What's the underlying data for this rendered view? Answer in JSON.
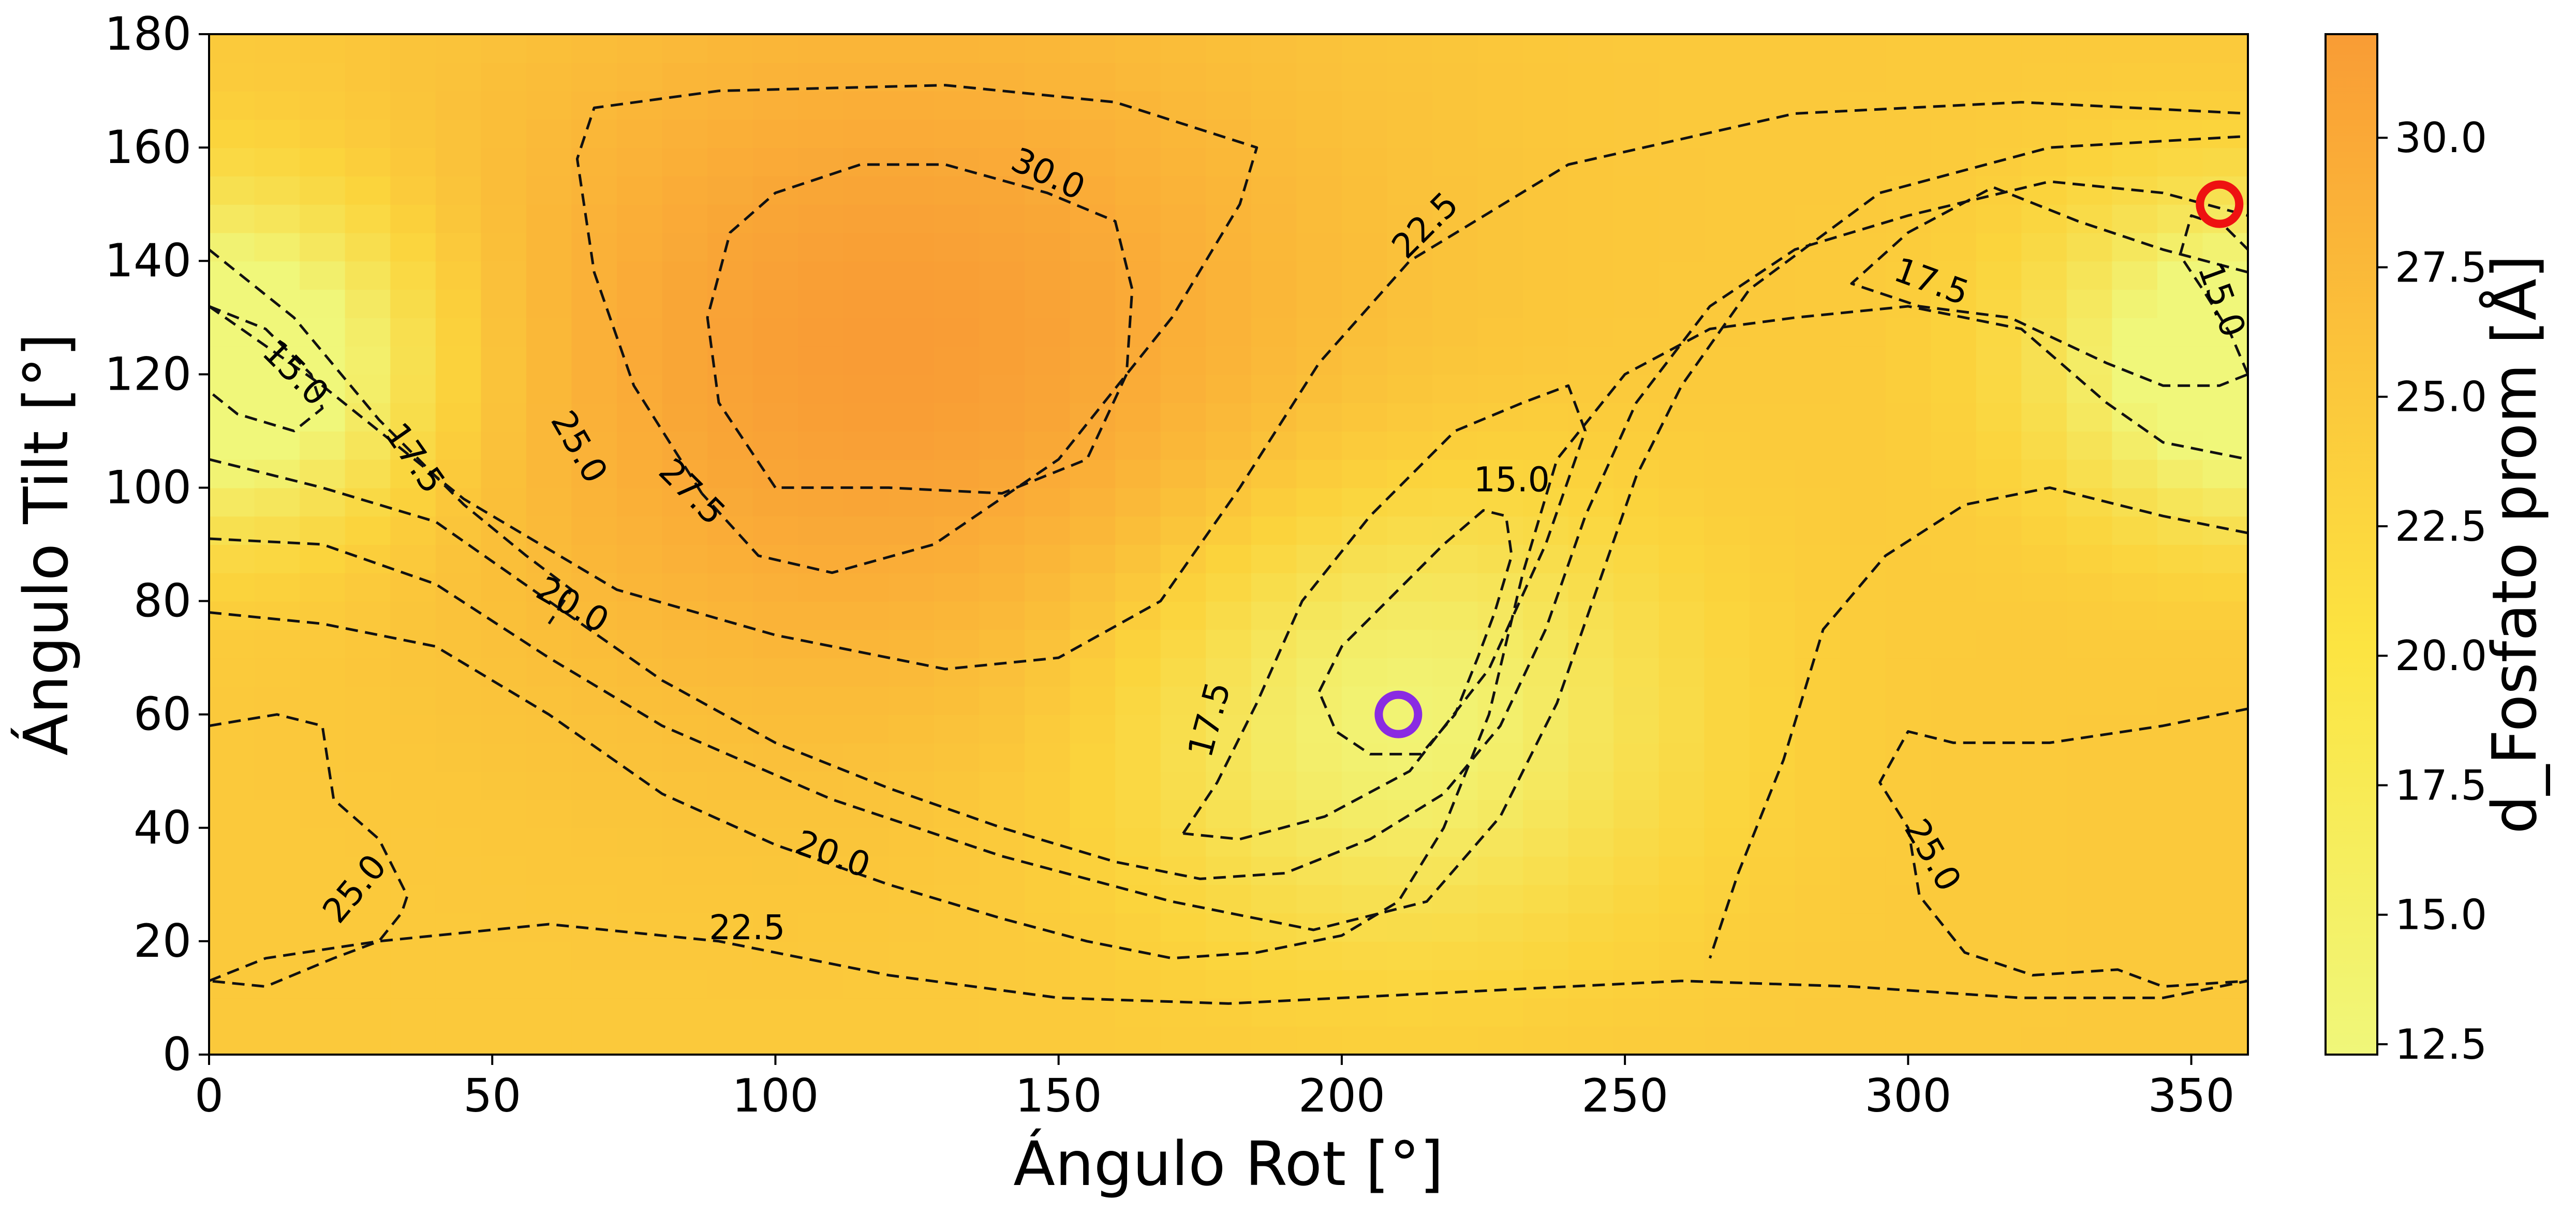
{
  "chart_data": {
    "type": "heatmap",
    "title": "",
    "xlabel": "Ángulo Rot [°]",
    "ylabel": "Ángulo Tilt [°]",
    "colorbar_label": "d_Fosfato prom [Å]",
    "xlim": [
      0,
      360
    ],
    "ylim": [
      0,
      180
    ],
    "x_ticks": [
      "0",
      "50",
      "100",
      "150",
      "200",
      "250",
      "300",
      "350"
    ],
    "y_ticks": [
      "0",
      "20",
      "40",
      "60",
      "80",
      "100",
      "120",
      "140",
      "160",
      "180"
    ],
    "colorbar_range": [
      12.3,
      32
    ],
    "colorbar_ticks": [
      "12.5",
      "15.0",
      "17.5",
      "20.0",
      "22.5",
      "25.0",
      "27.5",
      "30.0"
    ],
    "colormap": {
      "low": "#f0f77a",
      "mid": "#fbd43c",
      "high": "#f99c35"
    },
    "grid": false,
    "field_peaks": [
      {
        "x": 120,
        "y": 125,
        "value": 32,
        "radius": 75
      },
      {
        "x": 210,
        "y": 60,
        "value": 12.8,
        "radius": 48
      },
      {
        "x": 5,
        "y": 120,
        "value": 14.2,
        "radius": 32
      },
      {
        "x": 360,
        "y": 125,
        "value": 14.2,
        "radius": 36
      }
    ],
    "contour_levels": [
      {
        "level": 30.0,
        "label": "30.0",
        "path": [
          [
            100,
            100
          ],
          [
            90,
            115
          ],
          [
            88,
            130
          ],
          [
            92,
            145
          ],
          [
            100,
            152
          ],
          [
            115,
            157
          ],
          [
            130,
            157
          ],
          [
            148,
            152
          ],
          [
            160,
            147
          ],
          [
            163,
            135
          ],
          [
            162,
            120
          ],
          [
            155,
            105
          ],
          [
            140,
            99
          ],
          [
            120,
            100
          ],
          [
            100,
            100
          ]
        ]
      },
      {
        "level": 27.5,
        "label": "27.5",
        "path": [
          [
            87,
            99
          ],
          [
            75,
            118
          ],
          [
            68,
            138
          ],
          [
            65,
            158
          ],
          [
            68,
            167
          ],
          [
            90,
            170
          ],
          [
            130,
            171
          ],
          [
            160,
            168
          ],
          [
            185,
            160
          ],
          [
            182,
            150
          ],
          [
            170,
            130
          ],
          [
            150,
            105
          ],
          [
            128,
            90
          ],
          [
            110,
            85
          ],
          [
            97,
            88
          ],
          [
            87,
            99
          ]
        ]
      },
      {
        "level": 25.0,
        "label": "25.0",
        "path": [
          [
            0,
            132
          ],
          [
            20,
            118
          ],
          [
            45,
            98
          ],
          [
            72,
            82
          ],
          [
            100,
            74
          ],
          [
            130,
            68
          ],
          [
            150,
            70
          ],
          [
            168,
            80
          ],
          [
            182,
            100
          ],
          [
            196,
            122
          ],
          [
            212,
            140
          ],
          [
            240,
            157
          ],
          [
            280,
            166
          ],
          [
            320,
            168
          ],
          [
            360,
            166
          ]
        ]
      },
      {
        "level": 25.0,
        "label": "25.0",
        "path": [
          [
            0,
            58
          ],
          [
            12,
            60
          ],
          [
            20,
            58
          ],
          [
            22,
            45
          ],
          [
            30,
            38
          ],
          [
            35,
            28
          ],
          [
            34,
            25
          ],
          [
            30,
            20
          ],
          [
            22,
            17
          ],
          [
            10,
            12
          ],
          [
            0,
            13
          ]
        ]
      },
      {
        "level": 25.0,
        "label": "25.0",
        "path": [
          [
            360,
            61
          ],
          [
            345,
            58
          ],
          [
            325,
            55
          ],
          [
            308,
            55
          ],
          [
            300,
            57
          ],
          [
            295,
            48
          ],
          [
            300,
            40
          ],
          [
            302,
            28
          ],
          [
            310,
            18
          ],
          [
            322,
            14
          ],
          [
            337,
            15
          ],
          [
            345,
            12
          ],
          [
            360,
            13
          ]
        ]
      },
      {
        "level": 22.5,
        "label": "22.5",
        "path": [
          [
            0,
            91
          ],
          [
            20,
            90
          ],
          [
            40,
            83
          ],
          [
            60,
            70
          ],
          [
            80,
            58
          ],
          [
            110,
            45
          ],
          [
            140,
            35
          ],
          [
            170,
            27
          ],
          [
            195,
            22
          ],
          [
            215,
            27
          ],
          [
            228,
            42
          ],
          [
            238,
            62
          ],
          [
            245,
            82
          ],
          [
            252,
            102
          ],
          [
            260,
            118
          ],
          [
            272,
            135
          ],
          [
            295,
            152
          ],
          [
            325,
            160
          ],
          [
            360,
            162
          ]
        ]
      },
      {
        "level": 22.5,
        "label": "22.5",
        "path": [
          [
            0,
            13
          ],
          [
            10,
            17
          ],
          [
            30,
            20
          ],
          [
            60,
            23
          ],
          [
            90,
            20
          ],
          [
            120,
            14
          ],
          [
            150,
            10
          ],
          [
            180,
            9
          ],
          [
            220,
            11
          ],
          [
            260,
            13
          ],
          [
            290,
            12
          ],
          [
            320,
            10
          ],
          [
            345,
            10
          ],
          [
            360,
            13
          ]
        ]
      },
      {
        "level": 22.5,
        "label": "22.5",
        "path": [
          [
            360,
            92
          ],
          [
            345,
            95
          ],
          [
            325,
            100
          ],
          [
            310,
            97
          ],
          [
            296,
            88
          ],
          [
            285,
            75
          ],
          [
            278,
            52
          ],
          [
            270,
            32
          ],
          [
            265,
            17
          ]
        ]
      },
      {
        "level": 20.0,
        "label": "20.0",
        "path": [
          [
            0,
            105
          ],
          [
            20,
            100
          ],
          [
            40,
            94
          ],
          [
            60,
            80
          ],
          [
            80,
            66
          ],
          [
            100,
            55
          ],
          [
            120,
            47
          ],
          [
            140,
            40
          ],
          [
            160,
            34
          ],
          [
            175,
            31
          ],
          [
            190,
            32
          ],
          [
            205,
            38
          ],
          [
            218,
            46
          ],
          [
            228,
            58
          ],
          [
            236,
            75
          ],
          [
            243,
            95
          ],
          [
            252,
            115
          ],
          [
            265,
            132
          ],
          [
            280,
            142
          ],
          [
            300,
            148
          ],
          [
            325,
            154
          ],
          [
            345,
            152
          ],
          [
            360,
            148
          ]
        ]
      },
      {
        "level": 20.0,
        "label": "20.0",
        "path": [
          [
            0,
            78
          ],
          [
            20,
            76
          ],
          [
            40,
            72
          ],
          [
            60,
            60
          ],
          [
            80,
            46
          ],
          [
            100,
            37
          ],
          [
            120,
            30
          ],
          [
            140,
            24
          ],
          [
            155,
            20
          ],
          [
            170,
            17
          ],
          [
            185,
            18
          ],
          [
            200,
            21
          ],
          [
            210,
            27
          ],
          [
            218,
            40
          ],
          [
            226,
            60
          ],
          [
            232,
            85
          ],
          [
            238,
            105
          ],
          [
            250,
            120
          ],
          [
            265,
            128
          ],
          [
            280,
            130
          ],
          [
            300,
            132
          ],
          [
            320,
            128
          ],
          [
            335,
            115
          ],
          [
            345,
            108
          ],
          [
            360,
            105
          ]
        ]
      },
      {
        "level": 17.5,
        "label": "17.5",
        "path": [
          [
            0,
            142
          ],
          [
            15,
            130
          ],
          [
            30,
            112
          ],
          [
            45,
            97
          ],
          [
            56,
            88
          ],
          [
            64,
            82
          ],
          [
            60,
            76
          ]
        ]
      },
      {
        "level": 17.5,
        "label": "17.5",
        "path": [
          [
            172,
            39
          ],
          [
            178,
            48
          ],
          [
            185,
            62
          ],
          [
            193,
            80
          ],
          [
            205,
            95
          ],
          [
            220,
            110
          ],
          [
            232,
            115
          ],
          [
            240,
            118
          ],
          [
            243,
            110
          ],
          [
            236,
            90
          ],
          [
            226,
            68
          ],
          [
            212,
            50
          ],
          [
            197,
            42
          ],
          [
            182,
            38
          ],
          [
            172,
            39
          ]
        ]
      },
      {
        "level": 17.5,
        "label": "17.5",
        "path": [
          [
            360,
            138
          ],
          [
            345,
            142
          ],
          [
            330,
            147
          ],
          [
            315,
            153
          ],
          [
            300,
            145
          ],
          [
            290,
            136
          ],
          [
            302,
            132
          ],
          [
            318,
            130
          ],
          [
            335,
            122
          ],
          [
            345,
            118
          ],
          [
            355,
            118
          ],
          [
            360,
            120
          ]
        ]
      },
      {
        "level": 15.0,
        "label": "15.0",
        "path": [
          [
            0,
            132
          ],
          [
            10,
            128
          ],
          [
            18,
            120
          ],
          [
            20,
            114
          ],
          [
            15,
            110
          ],
          [
            5,
            113
          ],
          [
            0,
            117
          ]
        ]
      },
      {
        "level": 15.0,
        "label": "15.0",
        "path": [
          [
            196,
            64
          ],
          [
            200,
            72
          ],
          [
            208,
            80
          ],
          [
            218,
            90
          ],
          [
            225,
            96
          ],
          [
            229,
            95
          ],
          [
            230,
            88
          ],
          [
            227,
            78
          ],
          [
            224,
            70
          ],
          [
            220,
            60
          ],
          [
            214,
            53
          ],
          [
            205,
            53
          ],
          [
            199,
            57
          ],
          [
            196,
            64
          ]
        ]
      },
      {
        "level": 15.0,
        "label": "15.0",
        "path": [
          [
            360,
            120
          ],
          [
            357,
            127
          ],
          [
            352,
            135
          ],
          [
            348,
            141
          ],
          [
            350,
            148
          ],
          [
            356,
            146
          ],
          [
            360,
            142
          ]
        ]
      }
    ],
    "contour_labels": [
      {
        "text": "30.0",
        "x": 148,
        "y": 155,
        "angle": 25
      },
      {
        "text": "27.5",
        "x": 85,
        "y": 99,
        "angle": 45
      },
      {
        "text": "25.0",
        "x": 65,
        "y": 107,
        "angle": 60
      },
      {
        "text": "25.0",
        "x": 26,
        "y": 29,
        "angle": -50
      },
      {
        "text": "25.0",
        "x": 304,
        "y": 35,
        "angle": 60
      },
      {
        "text": "22.5",
        "x": 215,
        "y": 146,
        "angle": -45
      },
      {
        "text": "22.5",
        "x": 95,
        "y": 22,
        "angle": 0
      },
      {
        "text": "20.0",
        "x": 64,
        "y": 79,
        "angle": 30
      },
      {
        "text": "20.0",
        "x": 110,
        "y": 35,
        "angle": 20
      },
      {
        "text": "17.5",
        "x": 36,
        "y": 105,
        "angle": 55
      },
      {
        "text": "17.5",
        "x": 177,
        "y": 59,
        "angle": -75
      },
      {
        "text": "17.5",
        "x": 304,
        "y": 136,
        "angle": 20
      },
      {
        "text": "15.0",
        "x": 15,
        "y": 120,
        "angle": 45
      },
      {
        "text": "15.0",
        "x": 230,
        "y": 101,
        "angle": 0
      },
      {
        "text": "15.0",
        "x": 355,
        "y": 133,
        "angle": 70
      }
    ],
    "markers": [
      {
        "x": 355,
        "y": 150,
        "color": "#ee1111"
      },
      {
        "x": 210,
        "y": 60,
        "color": "#8a2be2"
      }
    ]
  }
}
